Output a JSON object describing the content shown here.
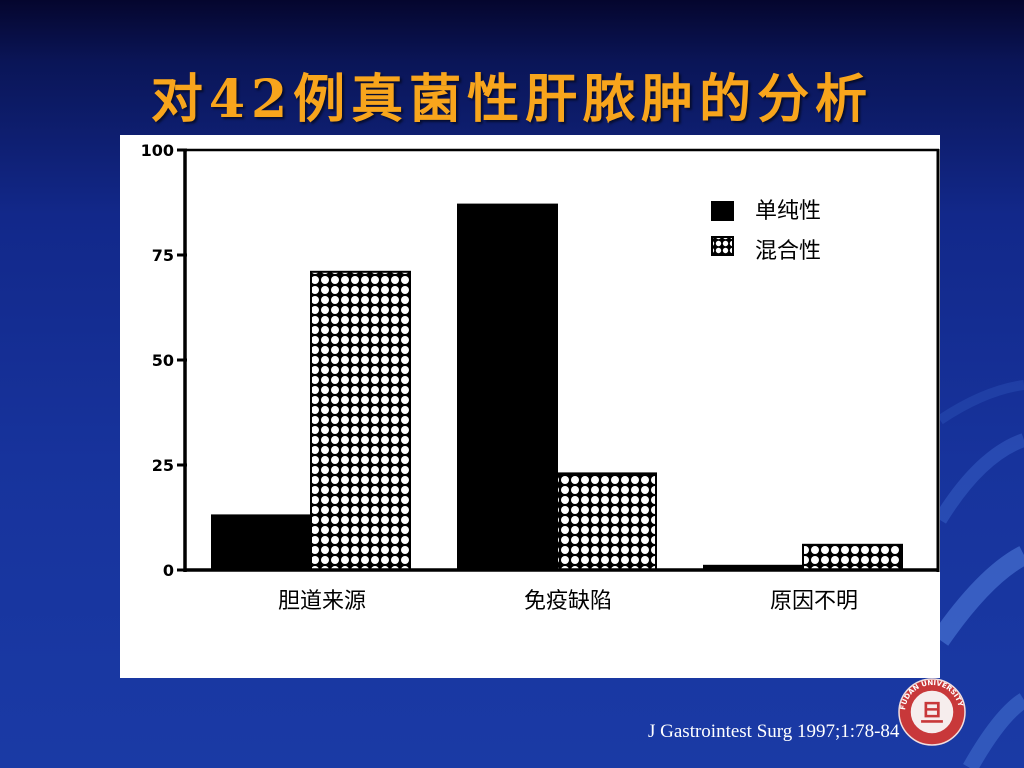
{
  "slide": {
    "title": "对42例真菌性肝脓肿的分析",
    "citation": "J Gastrointest Surg 1997;1:78-84",
    "title_color": "#f8a51c",
    "background_color": "#17339c"
  },
  "logo": {
    "icon": "university-seal-icon",
    "rim_text": "FUDAN UNIVERSITY",
    "center_glyph": "旦",
    "color": "#c8383a"
  },
  "chart_data": {
    "type": "bar",
    "title": "",
    "xlabel": "",
    "ylabel": "",
    "categories": [
      "胆道来源",
      "免疫缺陷",
      "原因不明"
    ],
    "series": [
      {
        "name": "单纯性",
        "values": [
          13,
          87,
          1
        ],
        "fill": "solid",
        "color": "#000000"
      },
      {
        "name": "混合性",
        "values": [
          71,
          23,
          6
        ],
        "fill": "dotted-checker",
        "color": "#000000"
      }
    ],
    "ylim": [
      0,
      100
    ],
    "yticks": [
      0,
      25,
      50,
      75,
      100
    ],
    "grid": false,
    "legend_position": "top-right"
  }
}
